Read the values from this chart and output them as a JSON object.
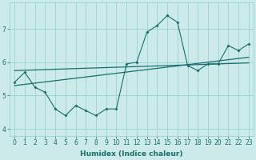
{
  "xlabel": "Humidex (Indice chaleur)",
  "ylabel": "",
  "x_data": [
    0,
    1,
    2,
    3,
    4,
    5,
    6,
    7,
    8,
    9,
    10,
    11,
    12,
    13,
    14,
    15,
    16,
    17,
    18,
    19,
    20,
    21,
    22,
    23
  ],
  "y_line1": [
    5.4,
    5.7,
    5.25,
    5.1,
    4.6,
    4.4,
    4.7,
    4.55,
    4.4,
    4.6,
    4.6,
    5.95,
    6.0,
    6.9,
    7.1,
    7.4,
    7.2,
    5.9,
    5.75,
    5.95,
    5.95,
    6.5,
    6.35,
    6.55
  ],
  "trend_x": [
    0,
    23
  ],
  "trend_y": [
    5.3,
    6.15
  ],
  "trend2_x": [
    0,
    23
  ],
  "trend2_y": [
    5.75,
    5.98
  ],
  "bg_color": "#cceaea",
  "grid_color": "#8ecece",
  "line_color": "#1a6e6a",
  "trend_color": "#1a6e6a",
  "ylim": [
    3.8,
    7.8
  ],
  "xlim": [
    -0.5,
    23.5
  ],
  "yticks": [
    4,
    5,
    6,
    7
  ],
  "xticks": [
    0,
    1,
    2,
    3,
    4,
    5,
    6,
    7,
    8,
    9,
    10,
    11,
    12,
    13,
    14,
    15,
    16,
    17,
    18,
    19,
    20,
    21,
    22,
    23
  ],
  "tick_fontsize": 5.5,
  "label_fontsize": 6.5
}
